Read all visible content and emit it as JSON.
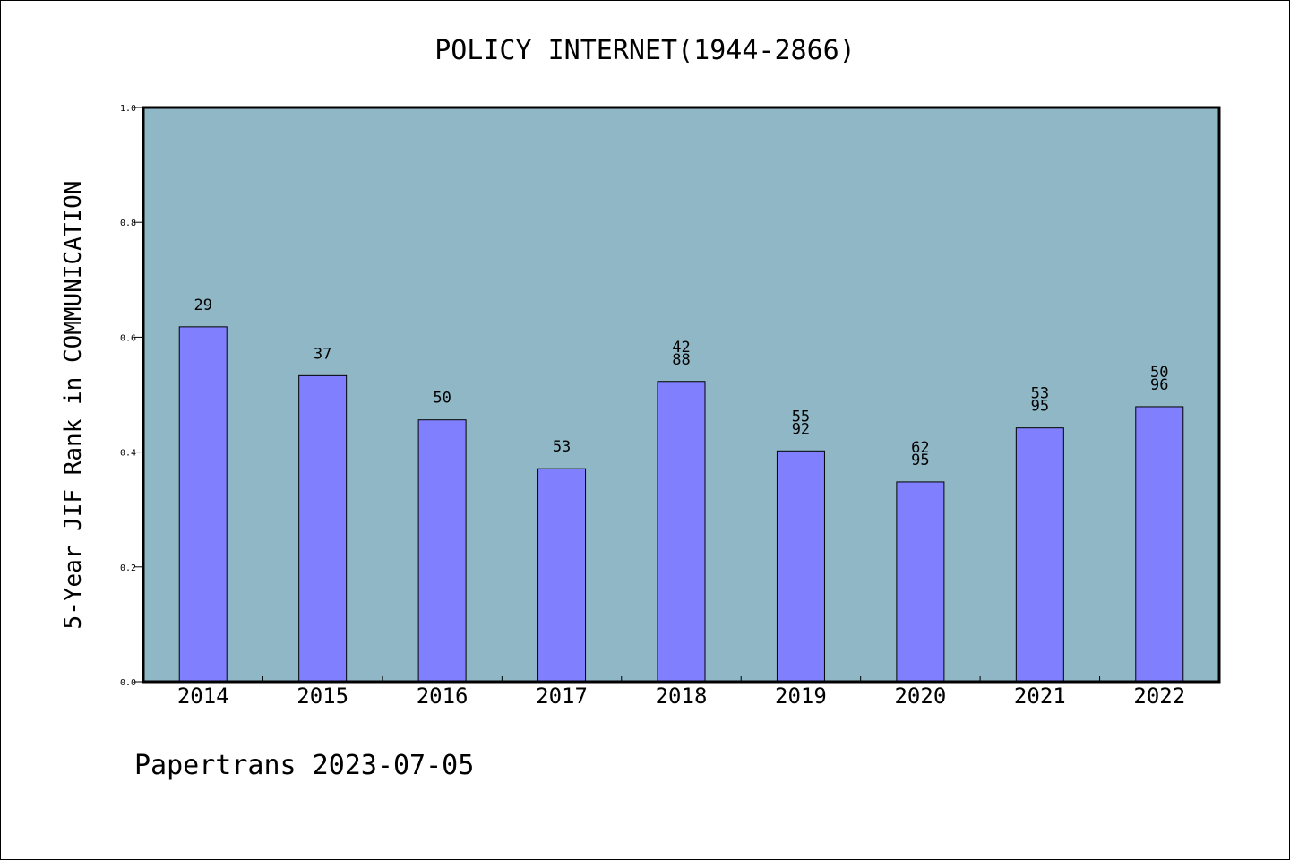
{
  "chart_data": {
    "type": "bar",
    "title": "POLICY INTERNET(1944-2866)",
    "xlabel": "",
    "ylabel": "5-Year JIF Rank in COMMUNICATION",
    "ylim": [
      0,
      1.0
    ],
    "yticks": [
      "0.0",
      "0.2",
      "0.4",
      "0.6",
      "0.8",
      "1.0"
    ],
    "categories": [
      "2014",
      "2015",
      "2016",
      "2017",
      "2018",
      "2019",
      "2020",
      "2021",
      "2022"
    ],
    "values": [
      0.618,
      0.533,
      0.456,
      0.371,
      0.523,
      0.402,
      0.348,
      0.442,
      0.479
    ],
    "bar_labels": [
      [
        "29"
      ],
      [
        "37"
      ],
      [
        "50"
      ],
      [
        "53"
      ],
      [
        "42",
        "88"
      ],
      [
        "55",
        "92"
      ],
      [
        "62",
        "95"
      ],
      [
        "53",
        "95"
      ],
      [
        "50",
        "96"
      ]
    ],
    "grid": false,
    "legend": "none",
    "colors": {
      "plot_background": "#8fb7c6",
      "bar_fill": "#8080ff",
      "bar_edge": "#000000"
    }
  },
  "footer": {
    "text": "Papertrans 2023-07-05"
  }
}
